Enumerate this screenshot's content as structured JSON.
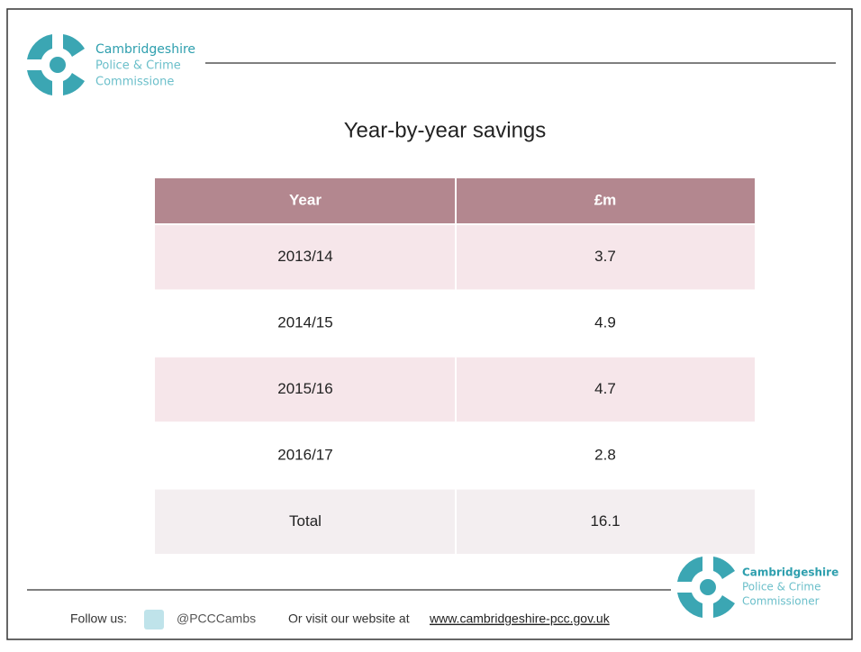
{
  "logo_top": {
    "lines": [
      "Cambridgeshire",
      "Police & Crime",
      "Commissione"
    ]
  },
  "title": "Year-by-year savings",
  "table": {
    "header": [
      "Year",
      "£m"
    ],
    "rows": [
      [
        "2013/14",
        3.7
      ],
      [
        "2014/15",
        4.9
      ],
      [
        "2015/16",
        4.7
      ],
      [
        "2016/17",
        2.8
      ],
      [
        "Total",
        16.1
      ]
    ]
  },
  "footer": {
    "follow": "Follow us:",
    "handle": "@PCCCambs",
    "visit": "Or visit our website at",
    "url": "www.cambridgeshire-pcc.gov.uk"
  },
  "logo_bottom": {
    "lines": [
      "Cambridgeshire",
      "Police & Crime",
      "Commissioner"
    ]
  }
}
